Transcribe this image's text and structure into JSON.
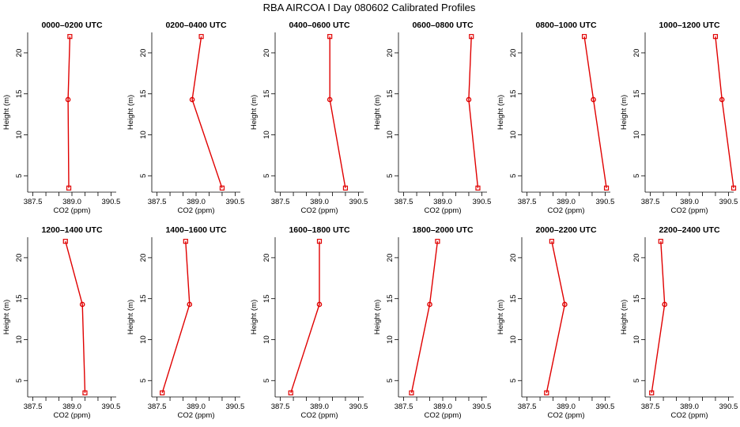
{
  "title": "RBA AIRCOA I  Day 080602  Calibrated Profiles",
  "colors": {
    "series": "#e00000",
    "axis": "#000000"
  },
  "chart_data": [
    {
      "type": "line",
      "title": "0000–0200 UTC",
      "xlabel": "CO2 (ppm)",
      "ylabel": "Height (m)",
      "xlim": [
        387.3,
        390.7
      ],
      "ylim": [
        3,
        22.5
      ],
      "xticks": [
        "387.5",
        "389.0",
        "390.5"
      ],
      "yticks": [
        5,
        10,
        15,
        20
      ],
      "series": [
        {
          "x": [
            388.92,
            388.85,
            388.88
          ],
          "y": [
            22,
            14.3,
            3.5
          ]
        }
      ]
    },
    {
      "type": "line",
      "title": "0200–0400 UTC",
      "xlabel": "CO2 (ppm)",
      "ylabel": "Height (m)",
      "xlim": [
        387.3,
        390.7
      ],
      "ylim": [
        3,
        22.5
      ],
      "xticks": [
        "387.5",
        "389.0",
        "390.5"
      ],
      "yticks": [
        5,
        10,
        15,
        20
      ],
      "series": [
        {
          "x": [
            389.2,
            388.85,
            390.0
          ],
          "y": [
            22,
            14.3,
            3.5
          ]
        }
      ]
    },
    {
      "type": "line",
      "title": "0400–0600 UTC",
      "xlabel": "CO2 (ppm)",
      "ylabel": "Height (m)",
      "xlim": [
        387.3,
        390.7
      ],
      "ylim": [
        3,
        22.5
      ],
      "xticks": [
        "387.5",
        "389.0",
        "390.5"
      ],
      "yticks": [
        5,
        10,
        15,
        20
      ],
      "series": [
        {
          "x": [
            389.4,
            389.4,
            390.0
          ],
          "y": [
            22,
            14.3,
            3.5
          ]
        }
      ]
    },
    {
      "type": "line",
      "title": "0600–0800 UTC",
      "xlabel": "CO2 (ppm)",
      "ylabel": "Height (m)",
      "xlim": [
        387.3,
        390.7
      ],
      "ylim": [
        3,
        22.5
      ],
      "xticks": [
        "387.5",
        "389.0",
        "390.5"
      ],
      "yticks": [
        5,
        10,
        15,
        20
      ],
      "series": [
        {
          "x": [
            390.1,
            390.0,
            390.35
          ],
          "y": [
            22,
            14.3,
            3.5
          ]
        }
      ]
    },
    {
      "type": "line",
      "title": "0800–1000 UTC",
      "xlabel": "CO2 (ppm)",
      "ylabel": "Height (m)",
      "xlim": [
        387.3,
        390.7
      ],
      "ylim": [
        3,
        22.5
      ],
      "xticks": [
        "387.5",
        "389.0",
        "390.5"
      ],
      "yticks": [
        5,
        10,
        15,
        20
      ],
      "series": [
        {
          "x": [
            389.7,
            390.05,
            390.55
          ],
          "y": [
            22,
            14.3,
            3.5
          ]
        }
      ]
    },
    {
      "type": "line",
      "title": "1000–1200 UTC",
      "xlabel": "CO2 (ppm)",
      "ylabel": "Height (m)",
      "xlim": [
        387.3,
        390.7
      ],
      "ylim": [
        3,
        22.5
      ],
      "xticks": [
        "387.5",
        "389.0",
        "390.5"
      ],
      "yticks": [
        5,
        10,
        15,
        20
      ],
      "series": [
        {
          "x": [
            390.0,
            390.25,
            390.7
          ],
          "y": [
            22,
            14.3,
            3.5
          ]
        }
      ]
    },
    {
      "type": "line",
      "title": "1200–1400 UTC",
      "xlabel": "CO2 (ppm)",
      "ylabel": "Height (m)",
      "xlim": [
        387.3,
        390.7
      ],
      "ylim": [
        3,
        22.5
      ],
      "xticks": [
        "387.5",
        "389.0",
        "390.5"
      ],
      "yticks": [
        5,
        10,
        15,
        20
      ],
      "series": [
        {
          "x": [
            388.75,
            389.4,
            389.5
          ],
          "y": [
            22,
            14.3,
            3.5
          ]
        }
      ]
    },
    {
      "type": "line",
      "title": "1400–1600 UTC",
      "xlabel": "CO2 (ppm)",
      "ylabel": "Height (m)",
      "xlim": [
        387.3,
        390.7
      ],
      "ylim": [
        3,
        22.5
      ],
      "xticks": [
        "387.5",
        "389.0",
        "390.5"
      ],
      "yticks": [
        5,
        10,
        15,
        20
      ],
      "series": [
        {
          "x": [
            388.6,
            388.75,
            387.7
          ],
          "y": [
            22,
            14.3,
            3.5
          ]
        }
      ]
    },
    {
      "type": "line",
      "title": "1600–1800 UTC",
      "xlabel": "CO2 (ppm)",
      "ylabel": "Height (m)",
      "xlim": [
        387.3,
        390.7
      ],
      "ylim": [
        3,
        22.5
      ],
      "xticks": [
        "387.5",
        "389.0",
        "390.5"
      ],
      "yticks": [
        5,
        10,
        15,
        20
      ],
      "series": [
        {
          "x": [
            389.0,
            389.0,
            387.9
          ],
          "y": [
            22,
            14.3,
            3.5
          ]
        }
      ]
    },
    {
      "type": "line",
      "title": "1800–2000 UTC",
      "xlabel": "CO2 (ppm)",
      "ylabel": "Height (m)",
      "xlim": [
        387.3,
        390.7
      ],
      "ylim": [
        3,
        22.5
      ],
      "xticks": [
        "387.5",
        "389.0",
        "390.5"
      ],
      "yticks": [
        5,
        10,
        15,
        20
      ],
      "series": [
        {
          "x": [
            388.8,
            388.5,
            387.8
          ],
          "y": [
            22,
            14.3,
            3.5
          ]
        }
      ]
    },
    {
      "type": "line",
      "title": "2000–2200 UTC",
      "xlabel": "CO2 (ppm)",
      "ylabel": "Height (m)",
      "xlim": [
        387.3,
        390.7
      ],
      "ylim": [
        3,
        22.5
      ],
      "xticks": [
        "387.5",
        "389.0",
        "390.5"
      ],
      "yticks": [
        5,
        10,
        15,
        20
      ],
      "series": [
        {
          "x": [
            388.45,
            388.95,
            388.25
          ],
          "y": [
            22,
            14.3,
            3.5
          ]
        }
      ]
    },
    {
      "type": "line",
      "title": "2200–2400 UTC",
      "xlabel": "CO2 (ppm)",
      "ylabel": "Height (m)",
      "xlim": [
        387.3,
        390.7
      ],
      "ylim": [
        3,
        22.5
      ],
      "xticks": [
        "387.5",
        "389.0",
        "390.5"
      ],
      "yticks": [
        5,
        10,
        15,
        20
      ],
      "series": [
        {
          "x": [
            387.9,
            388.05,
            387.55
          ],
          "y": [
            22,
            14.3,
            3.5
          ]
        }
      ]
    }
  ]
}
